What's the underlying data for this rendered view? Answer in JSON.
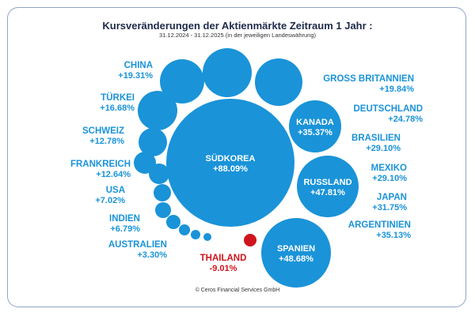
{
  "header": {
    "title": "Kursveränderungen der Aktienmärkte Zeitraum 1 Jahr :",
    "subtitle": "31.12.2024 - 31.12.2025 (in der jeweiligen Landeswährung)"
  },
  "footer": {
    "copyright": "© Ceros Financial Services GmbH"
  },
  "colors": {
    "positive": "#1a93d8",
    "negative": "#d0141c",
    "frame": "#8fa3c8"
  },
  "chart_data": {
    "type": "bubble",
    "title": "Kursveränderungen der Aktienmärkte Zeitraum 1 Jahr :",
    "subtitle": "31.12.2024 - 31.12.2025 (in der jeweiligen Landeswährung)",
    "unit": "%",
    "points": [
      {
        "country": "SÜDKOREA",
        "value": 88.09,
        "label": "+88.09%"
      },
      {
        "country": "SPANIEN",
        "value": 48.68,
        "label": "+48.68%"
      },
      {
        "country": "RUSSLAND",
        "value": 47.81,
        "label": "+47.81%"
      },
      {
        "country": "KANADA",
        "value": 35.37,
        "label": "+35.37%"
      },
      {
        "country": "ARGENTINIEN",
        "value": 35.13,
        "label": "+35.13%"
      },
      {
        "country": "JAPAN",
        "value": 31.75,
        "label": "+31.75%"
      },
      {
        "country": "MEXIKO",
        "value": 29.1,
        "label": "+29.10%"
      },
      {
        "country": "BRASILIEN",
        "value": 29.1,
        "label": "+29.10%"
      },
      {
        "country": "DEUTSCHLAND",
        "value": 24.78,
        "label": "+24.78%"
      },
      {
        "country": "GROSS BRITANNIEN",
        "value": 19.84,
        "label": "+19.84%"
      },
      {
        "country": "CHINA",
        "value": 19.31,
        "label": "+19.31%"
      },
      {
        "country": "TÜRKEI",
        "value": 16.68,
        "label": "+16.68%"
      },
      {
        "country": "SCHWEIZ",
        "value": 12.78,
        "label": "+12.78%"
      },
      {
        "country": "FRANKREICH",
        "value": 12.64,
        "label": "+12.64%"
      },
      {
        "country": "USA",
        "value": 7.02,
        "label": "+7.02%"
      },
      {
        "country": "INDIEN",
        "value": 6.79,
        "label": "+6.79%"
      },
      {
        "country": "AUSTRALIEN",
        "value": 3.3,
        "label": "+3.30%"
      },
      {
        "country": "THAILAND",
        "value": -9.01,
        "label": "-9.01%"
      }
    ]
  }
}
